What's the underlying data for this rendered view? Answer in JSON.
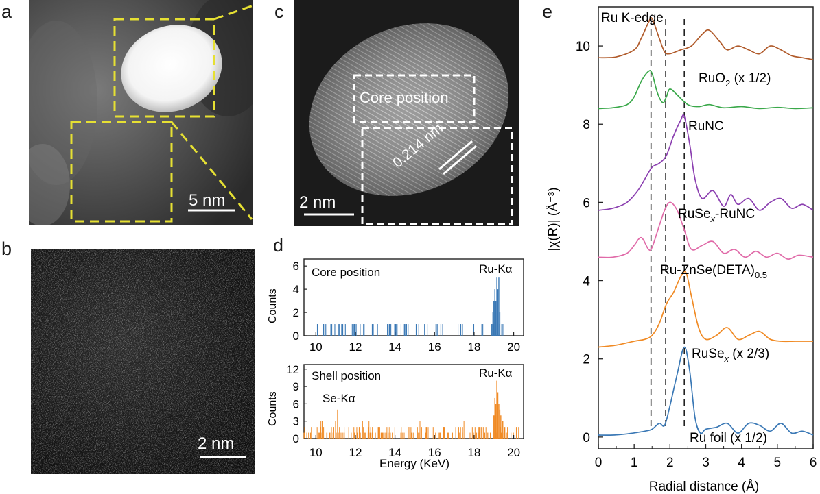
{
  "panels": {
    "a": "a",
    "b": "b",
    "c": "c",
    "d": "d",
    "e": "e"
  },
  "panel_a": {
    "scale_bar": "5 nm"
  },
  "panel_b": {
    "scale_bar": "2 nm"
  },
  "panel_c": {
    "scale_bar": "2 nm",
    "core_label": "Core position",
    "lattice_label": "0.214 nm"
  },
  "panel_d": {
    "top": {
      "title": "Core position",
      "peak_label": "Ru-Kα",
      "ylabel": "Counts",
      "yticks": [
        "0",
        "2",
        "4",
        "6"
      ]
    },
    "bottom": {
      "title": "Shell position",
      "peak_label": "Ru-Kα",
      "peak2_label": "Se-Kα",
      "ylabel": "Counts",
      "yticks": [
        "0",
        "3",
        "6",
        "9",
        "12"
      ]
    },
    "xticks": [
      "10",
      "12",
      "14",
      "16",
      "18",
      "20"
    ],
    "xlabel": "Energy (KeV)",
    "colors": {
      "top": "#3a78b5",
      "bottom": "#f08a24"
    }
  },
  "chart_data": {
    "type": "line",
    "title": "Ru K-edge",
    "xlabel": "Radial distance (Å)",
    "ylabel": "|χ(R)| (Å⁻³)",
    "xlim": [
      0,
      6
    ],
    "ylim": [
      -0.3,
      11
    ],
    "xticks": [
      "0",
      "1",
      "2",
      "3",
      "4",
      "5",
      "6"
    ],
    "yticks": [
      "0",
      "2",
      "4",
      "6",
      "8",
      "10"
    ],
    "vlines": [
      1.47,
      1.88,
      2.4
    ],
    "series": [
      {
        "name": "RuO2 (x 1/2)",
        "color": "#b05a2a",
        "x": [
          0,
          0.5,
          1.0,
          1.2,
          1.4,
          1.5,
          1.7,
          1.85,
          2.0,
          2.3,
          2.6,
          2.9,
          3.1,
          3.4,
          3.6,
          3.9,
          4.2,
          4.5,
          4.8,
          5.1,
          5.4,
          5.7,
          6.0
        ],
        "y": [
          9.7,
          9.72,
          9.9,
          10.2,
          10.6,
          10.7,
          10.2,
          9.85,
          9.8,
          9.9,
          10.0,
          10.3,
          10.4,
          10.1,
          9.9,
          10.0,
          9.9,
          9.8,
          10.0,
          9.9,
          9.75,
          9.7,
          9.65
        ]
      },
      {
        "name": "RuNC",
        "color": "#3aa84a",
        "x": [
          0,
          0.4,
          0.8,
          1.0,
          1.2,
          1.4,
          1.5,
          1.65,
          1.8,
          1.9,
          2.0,
          2.2,
          2.5,
          2.8,
          3.1,
          3.5,
          4.0,
          4.5,
          5.0,
          5.5,
          6.0
        ],
        "y": [
          8.4,
          8.42,
          8.5,
          8.7,
          9.1,
          9.35,
          9.3,
          8.8,
          8.55,
          8.7,
          8.9,
          8.75,
          8.5,
          8.45,
          8.5,
          8.42,
          8.45,
          8.4,
          8.43,
          8.4,
          8.42
        ]
      },
      {
        "name": "RuSe_x-RuNC",
        "color": "#8b3fb0",
        "x": [
          0,
          0.4,
          0.8,
          1.1,
          1.3,
          1.5,
          1.7,
          1.9,
          2.1,
          2.3,
          2.4,
          2.55,
          2.7,
          2.9,
          3.2,
          3.5,
          3.7,
          3.9,
          4.2,
          4.5,
          4.8,
          5.1,
          5.4,
          5.7,
          6.0
        ],
        "y": [
          5.8,
          5.85,
          6.0,
          6.3,
          6.6,
          6.9,
          7.0,
          7.2,
          7.7,
          8.1,
          8.2,
          7.5,
          6.6,
          6.1,
          6.3,
          5.9,
          6.2,
          5.95,
          6.1,
          5.8,
          6.0,
          6.1,
          5.85,
          5.95,
          5.8
        ]
      },
      {
        "name": "Ru-ZnSe(DETA)0.5",
        "color": "#e06aa8",
        "x": [
          0,
          0.4,
          0.8,
          1.0,
          1.2,
          1.4,
          1.5,
          1.7,
          1.85,
          2.0,
          2.2,
          2.4,
          2.6,
          2.9,
          3.2,
          3.5,
          3.8,
          4.1,
          4.4,
          4.7,
          5.0,
          5.3,
          5.6,
          6.0
        ],
        "y": [
          4.6,
          4.6,
          4.7,
          4.9,
          5.1,
          4.8,
          4.85,
          5.4,
          5.8,
          6.0,
          5.8,
          5.3,
          4.8,
          4.9,
          5.0,
          4.7,
          4.8,
          4.6,
          4.75,
          4.6,
          4.7,
          4.55,
          4.65,
          4.6
        ]
      },
      {
        "name": "RuSe_x (x 2/3)",
        "color": "#f08a24",
        "x": [
          0,
          0.5,
          1.0,
          1.3,
          1.5,
          1.7,
          1.9,
          2.1,
          2.3,
          2.45,
          2.6,
          2.8,
          3.0,
          3.3,
          3.6,
          3.9,
          4.2,
          4.5,
          4.8,
          5.1,
          5.5,
          6.0
        ],
        "y": [
          2.3,
          2.35,
          2.45,
          2.5,
          2.6,
          2.9,
          3.4,
          3.7,
          4.1,
          4.2,
          3.6,
          2.8,
          2.5,
          2.6,
          2.8,
          2.5,
          2.6,
          2.7,
          2.5,
          2.45,
          2.45,
          2.45
        ]
      },
      {
        "name": "Ru foil (x 1/2)",
        "color": "#3a78b5",
        "x": [
          0,
          0.4,
          0.8,
          1.1,
          1.3,
          1.5,
          1.7,
          1.85,
          2.0,
          2.2,
          2.4,
          2.55,
          2.7,
          2.85,
          3.0,
          3.3,
          3.6,
          3.9,
          4.2,
          4.5,
          4.8,
          5.1,
          5.4,
          5.7,
          6.0
        ],
        "y": [
          0.05,
          0.05,
          0.08,
          0.12,
          0.15,
          0.2,
          0.35,
          0.3,
          0.8,
          1.6,
          2.3,
          1.7,
          0.5,
          0.1,
          0.2,
          0.25,
          0.35,
          0.1,
          0.35,
          0.3,
          0.15,
          0.35,
          0.1,
          0.15,
          0.05
        ]
      }
    ],
    "labels": [
      {
        "text": "RuO",
        "sub": "2",
        "rest": " (x 1/2)"
      },
      {
        "text": "RuNC",
        "sub": "",
        "rest": ""
      },
      {
        "text": "RuSe",
        "sub": "x",
        "rest": "-RuNC"
      },
      {
        "text": "Ru-ZnSe(DETA)",
        "sub": "0.5",
        "rest": ""
      },
      {
        "text": "RuSe",
        "sub": "x",
        "rest": " (x 2/3)"
      },
      {
        "text": "Ru foil (x 1/2)",
        "sub": "",
        "rest": ""
      }
    ]
  }
}
